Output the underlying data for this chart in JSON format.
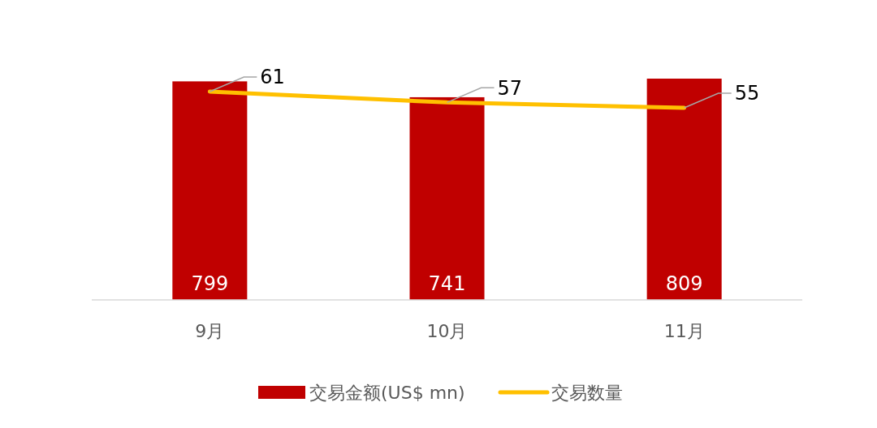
{
  "chart_data": {
    "type": "bar",
    "categories": [
      "9月",
      "10月",
      "11月"
    ],
    "series": [
      {
        "name": "交易金额(US$ mn)",
        "color": "#c00000",
        "values": [
          799,
          741,
          809
        ]
      },
      {
        "name": "交易数量",
        "type": "line",
        "axis": "y2",
        "color": "#ffc000",
        "values": [
          61,
          57,
          55
        ]
      }
    ],
    "tick_labels": "x",
    "data_labels": true,
    "legend": "bottom",
    "marker": "none"
  }
}
